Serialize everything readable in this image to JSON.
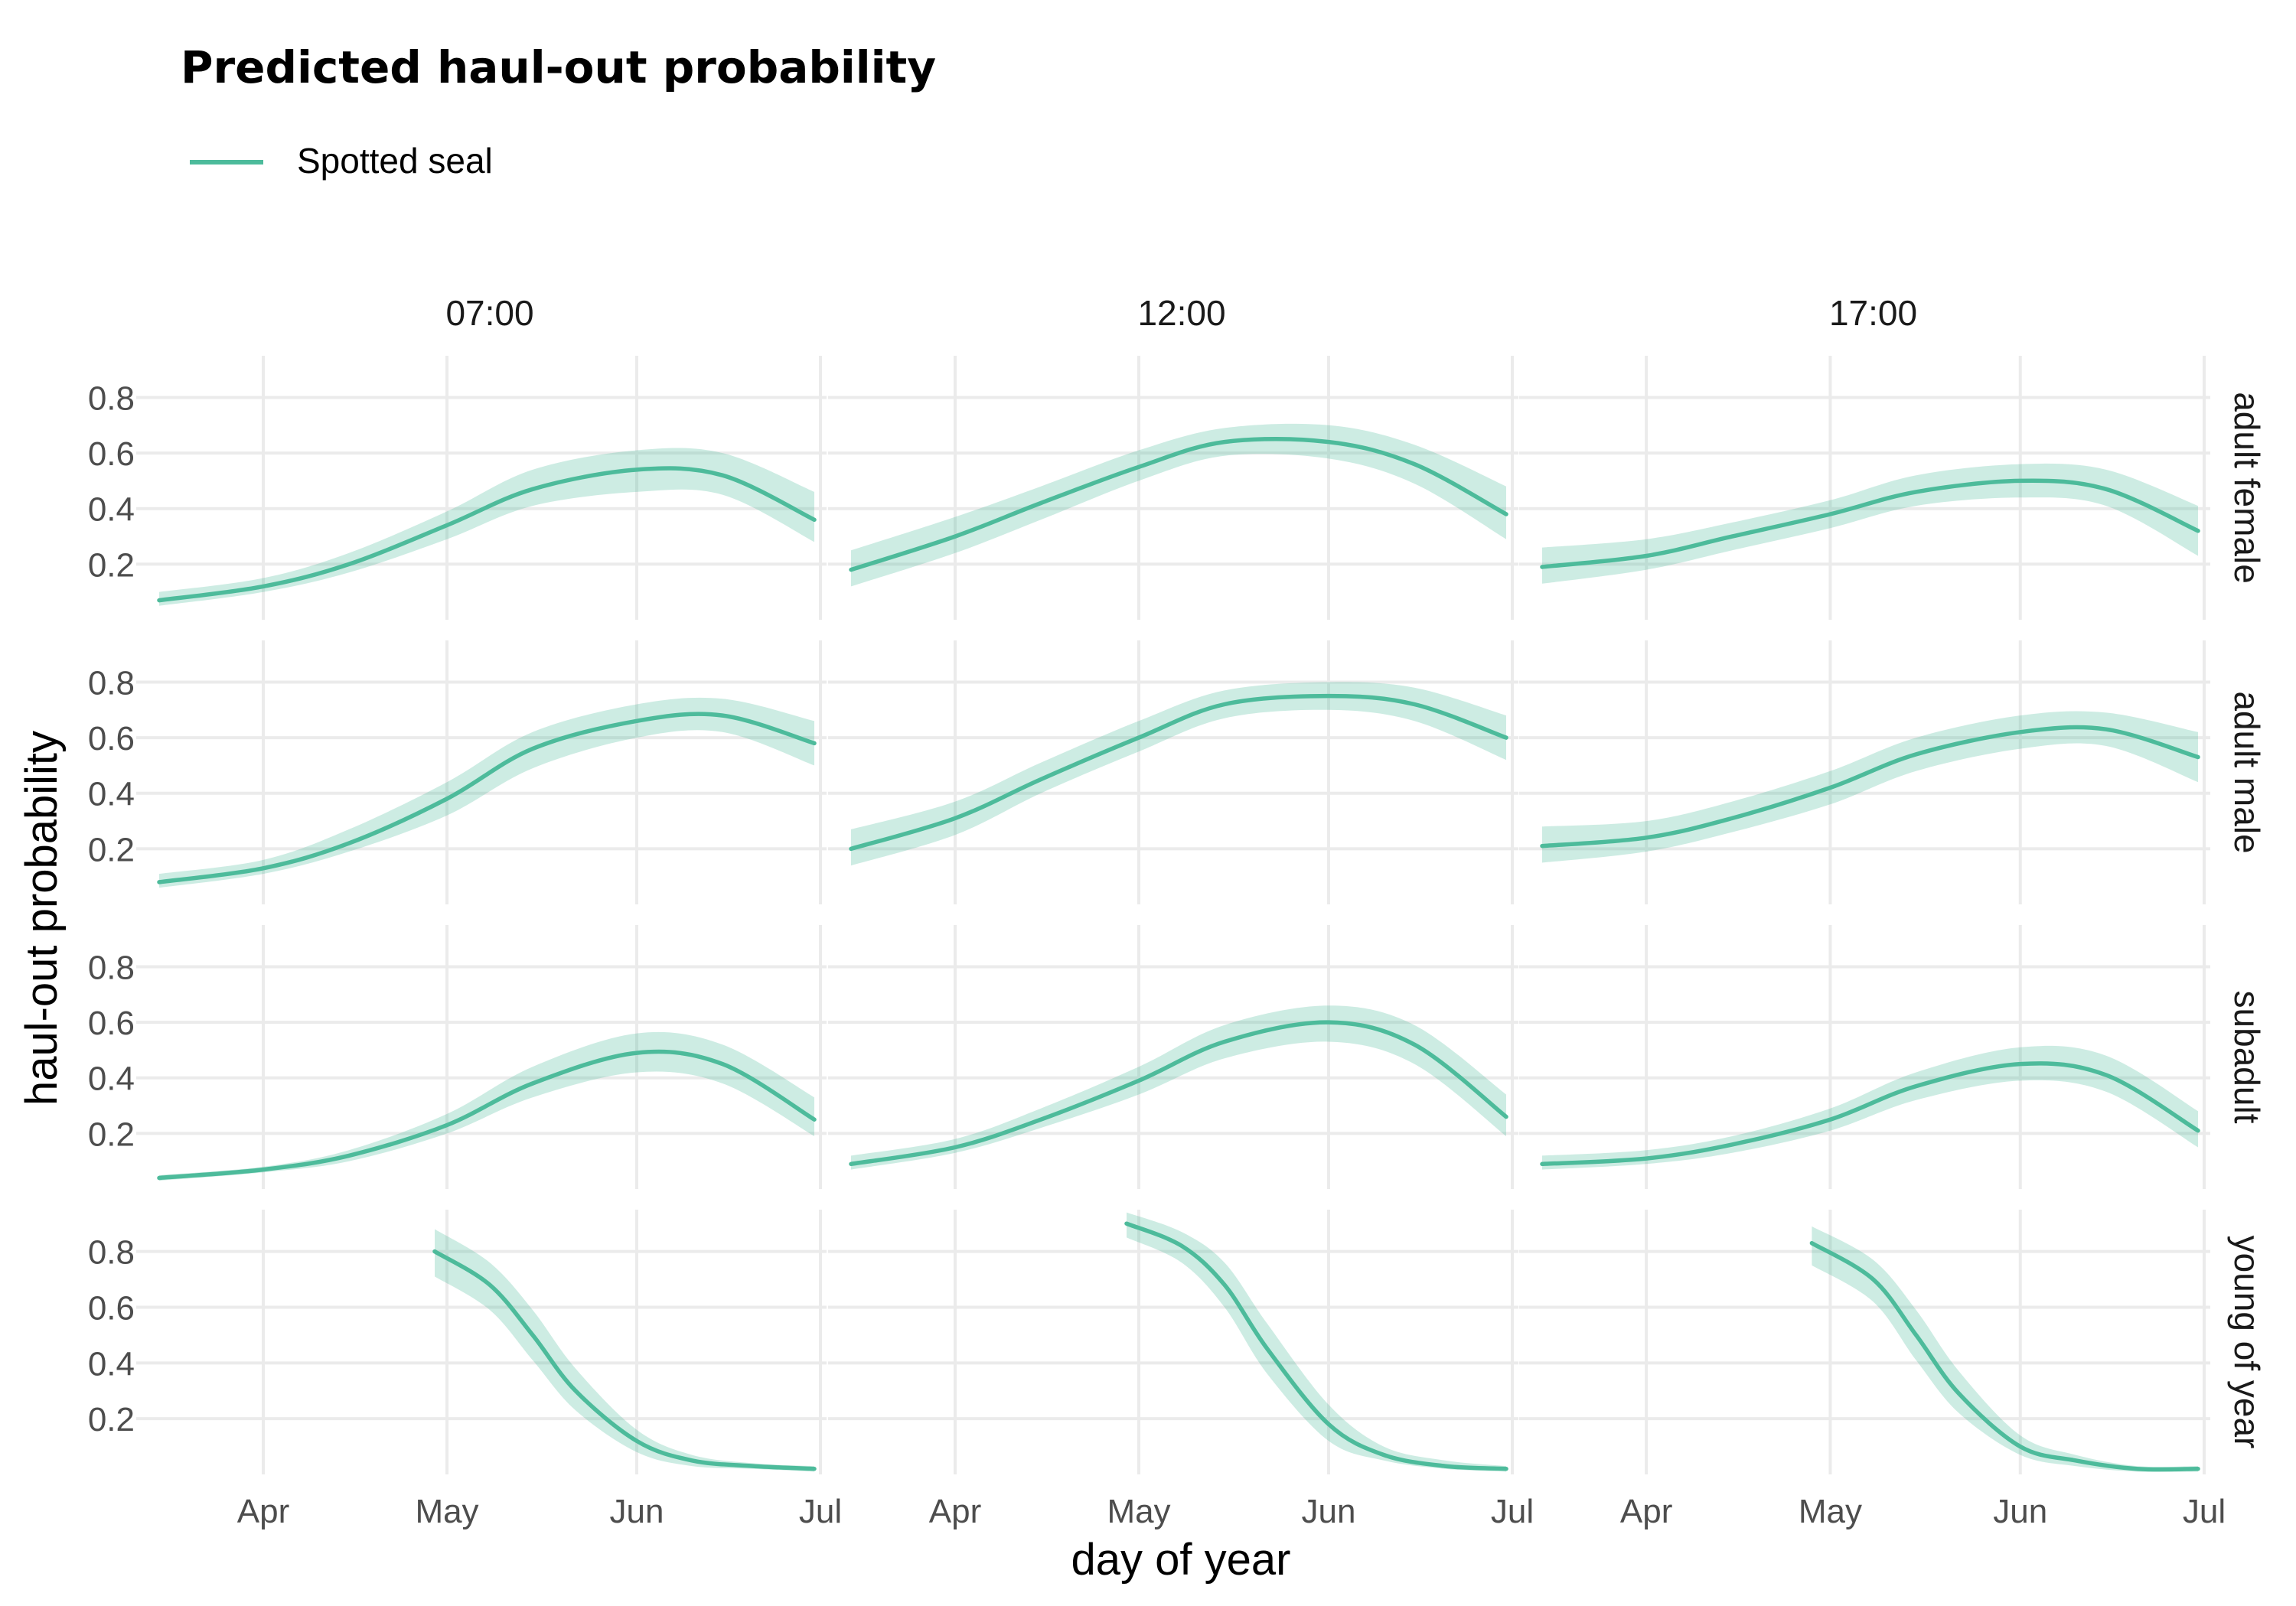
{
  "chart_data": {
    "type": "line",
    "title": "Predicted haul-out probability",
    "xlabel": "day of year",
    "ylabel": "haul-out probability",
    "colors": {
      "line": "#4dbb9b",
      "ribbon": "#4dbb9b",
      "grid": "#ebebeb"
    },
    "legend": {
      "position": "top-left",
      "entries": [
        "Spotted seal"
      ]
    },
    "grid": true,
    "columns": [
      "07:00",
      "12:00",
      "17:00"
    ],
    "rows": [
      "adult female",
      "adult male",
      "subadult",
      "young of year"
    ],
    "x_ticks": [
      {
        "label": "Apr",
        "date": "2024-04-01"
      },
      {
        "label": "May",
        "date": "2024-05-01"
      },
      {
        "label": "Jun",
        "date": "2024-06-01"
      },
      {
        "label": "Jul",
        "date": "2024-07-01"
      }
    ],
    "xlim": [
      "2024-03-15",
      "2024-07-01"
    ],
    "y_ticks": [
      0.2,
      0.4,
      0.6,
      0.8
    ],
    "ylim": [
      0,
      0.95
    ],
    "panels": [
      {
        "row": "adult female",
        "col": "07:00",
        "points": [
          {
            "date": "2024-03-15",
            "y": 0.07,
            "lo": 0.05,
            "hi": 0.1
          },
          {
            "date": "2024-04-01",
            "y": 0.12,
            "lo": 0.1,
            "hi": 0.15
          },
          {
            "date": "2024-04-15",
            "y": 0.2,
            "lo": 0.17,
            "hi": 0.24
          },
          {
            "date": "2024-05-01",
            "y": 0.34,
            "lo": 0.29,
            "hi": 0.39
          },
          {
            "date": "2024-05-15",
            "y": 0.47,
            "lo": 0.41,
            "hi": 0.54
          },
          {
            "date": "2024-06-01",
            "y": 0.54,
            "lo": 0.46,
            "hi": 0.61
          },
          {
            "date": "2024-06-15",
            "y": 0.52,
            "lo": 0.45,
            "hi": 0.6
          },
          {
            "date": "2024-06-30",
            "y": 0.36,
            "lo": 0.28,
            "hi": 0.46
          }
        ]
      },
      {
        "row": "adult female",
        "col": "12:00",
        "points": [
          {
            "date": "2024-03-15",
            "y": 0.18,
            "lo": 0.12,
            "hi": 0.25
          },
          {
            "date": "2024-04-01",
            "y": 0.3,
            "lo": 0.24,
            "hi": 0.37
          },
          {
            "date": "2024-04-15",
            "y": 0.42,
            "lo": 0.36,
            "hi": 0.48
          },
          {
            "date": "2024-05-01",
            "y": 0.55,
            "lo": 0.5,
            "hi": 0.61
          },
          {
            "date": "2024-05-15",
            "y": 0.64,
            "lo": 0.59,
            "hi": 0.69
          },
          {
            "date": "2024-06-01",
            "y": 0.64,
            "lo": 0.58,
            "hi": 0.7
          },
          {
            "date": "2024-06-15",
            "y": 0.56,
            "lo": 0.49,
            "hi": 0.63
          },
          {
            "date": "2024-06-30",
            "y": 0.38,
            "lo": 0.29,
            "hi": 0.48
          }
        ]
      },
      {
        "row": "adult female",
        "col": "17:00",
        "points": [
          {
            "date": "2024-03-15",
            "y": 0.19,
            "lo": 0.13,
            "hi": 0.26
          },
          {
            "date": "2024-04-01",
            "y": 0.23,
            "lo": 0.18,
            "hi": 0.29
          },
          {
            "date": "2024-04-15",
            "y": 0.3,
            "lo": 0.25,
            "hi": 0.35
          },
          {
            "date": "2024-05-01",
            "y": 0.38,
            "lo": 0.33,
            "hi": 0.43
          },
          {
            "date": "2024-05-15",
            "y": 0.46,
            "lo": 0.41,
            "hi": 0.52
          },
          {
            "date": "2024-06-01",
            "y": 0.5,
            "lo": 0.44,
            "hi": 0.56
          },
          {
            "date": "2024-06-15",
            "y": 0.47,
            "lo": 0.41,
            "hi": 0.54
          },
          {
            "date": "2024-06-30",
            "y": 0.32,
            "lo": 0.23,
            "hi": 0.41
          }
        ]
      },
      {
        "row": "adult male",
        "col": "07:00",
        "points": [
          {
            "date": "2024-03-15",
            "y": 0.08,
            "lo": 0.06,
            "hi": 0.11
          },
          {
            "date": "2024-04-01",
            "y": 0.13,
            "lo": 0.11,
            "hi": 0.16
          },
          {
            "date": "2024-04-15",
            "y": 0.22,
            "lo": 0.19,
            "hi": 0.27
          },
          {
            "date": "2024-05-01",
            "y": 0.38,
            "lo": 0.32,
            "hi": 0.44
          },
          {
            "date": "2024-05-15",
            "y": 0.56,
            "lo": 0.49,
            "hi": 0.62
          },
          {
            "date": "2024-06-01",
            "y": 0.66,
            "lo": 0.6,
            "hi": 0.72
          },
          {
            "date": "2024-06-15",
            "y": 0.68,
            "lo": 0.62,
            "hi": 0.74
          },
          {
            "date": "2024-06-30",
            "y": 0.58,
            "lo": 0.5,
            "hi": 0.66
          }
        ]
      },
      {
        "row": "adult male",
        "col": "12:00",
        "points": [
          {
            "date": "2024-03-15",
            "y": 0.2,
            "lo": 0.14,
            "hi": 0.27
          },
          {
            "date": "2024-04-01",
            "y": 0.31,
            "lo": 0.25,
            "hi": 0.37
          },
          {
            "date": "2024-04-15",
            "y": 0.45,
            "lo": 0.4,
            "hi": 0.51
          },
          {
            "date": "2024-05-01",
            "y": 0.6,
            "lo": 0.55,
            "hi": 0.66
          },
          {
            "date": "2024-05-15",
            "y": 0.72,
            "lo": 0.67,
            "hi": 0.77
          },
          {
            "date": "2024-06-01",
            "y": 0.75,
            "lo": 0.7,
            "hi": 0.8
          },
          {
            "date": "2024-06-15",
            "y": 0.72,
            "lo": 0.66,
            "hi": 0.78
          },
          {
            "date": "2024-06-30",
            "y": 0.6,
            "lo": 0.52,
            "hi": 0.68
          }
        ]
      },
      {
        "row": "adult male",
        "col": "17:00",
        "points": [
          {
            "date": "2024-03-15",
            "y": 0.21,
            "lo": 0.15,
            "hi": 0.28
          },
          {
            "date": "2024-04-01",
            "y": 0.24,
            "lo": 0.19,
            "hi": 0.3
          },
          {
            "date": "2024-04-15",
            "y": 0.31,
            "lo": 0.26,
            "hi": 0.37
          },
          {
            "date": "2024-05-01",
            "y": 0.42,
            "lo": 0.36,
            "hi": 0.48
          },
          {
            "date": "2024-05-15",
            "y": 0.54,
            "lo": 0.48,
            "hi": 0.6
          },
          {
            "date": "2024-06-01",
            "y": 0.62,
            "lo": 0.56,
            "hi": 0.68
          },
          {
            "date": "2024-06-15",
            "y": 0.63,
            "lo": 0.57,
            "hi": 0.69
          },
          {
            "date": "2024-06-30",
            "y": 0.53,
            "lo": 0.44,
            "hi": 0.62
          }
        ]
      },
      {
        "row": "subadult",
        "col": "07:00",
        "points": [
          {
            "date": "2024-03-15",
            "y": 0.04,
            "lo": 0.03,
            "hi": 0.05
          },
          {
            "date": "2024-04-01",
            "y": 0.07,
            "lo": 0.06,
            "hi": 0.08
          },
          {
            "date": "2024-04-15",
            "y": 0.12,
            "lo": 0.1,
            "hi": 0.14
          },
          {
            "date": "2024-05-01",
            "y": 0.23,
            "lo": 0.2,
            "hi": 0.27
          },
          {
            "date": "2024-05-15",
            "y": 0.38,
            "lo": 0.33,
            "hi": 0.44
          },
          {
            "date": "2024-06-01",
            "y": 0.49,
            "lo": 0.42,
            "hi": 0.56
          },
          {
            "date": "2024-06-15",
            "y": 0.45,
            "lo": 0.38,
            "hi": 0.52
          },
          {
            "date": "2024-06-30",
            "y": 0.25,
            "lo": 0.19,
            "hi": 0.33
          }
        ]
      },
      {
        "row": "subadult",
        "col": "12:00",
        "points": [
          {
            "date": "2024-03-15",
            "y": 0.09,
            "lo": 0.07,
            "hi": 0.12
          },
          {
            "date": "2024-04-01",
            "y": 0.15,
            "lo": 0.13,
            "hi": 0.18
          },
          {
            "date": "2024-04-15",
            "y": 0.25,
            "lo": 0.22,
            "hi": 0.29
          },
          {
            "date": "2024-05-01",
            "y": 0.39,
            "lo": 0.34,
            "hi": 0.44
          },
          {
            "date": "2024-05-15",
            "y": 0.53,
            "lo": 0.47,
            "hi": 0.59
          },
          {
            "date": "2024-06-01",
            "y": 0.6,
            "lo": 0.53,
            "hi": 0.66
          },
          {
            "date": "2024-06-15",
            "y": 0.52,
            "lo": 0.45,
            "hi": 0.59
          },
          {
            "date": "2024-06-30",
            "y": 0.26,
            "lo": 0.19,
            "hi": 0.34
          }
        ]
      },
      {
        "row": "subadult",
        "col": "17:00",
        "points": [
          {
            "date": "2024-03-15",
            "y": 0.09,
            "lo": 0.07,
            "hi": 0.12
          },
          {
            "date": "2024-04-01",
            "y": 0.11,
            "lo": 0.09,
            "hi": 0.14
          },
          {
            "date": "2024-04-15",
            "y": 0.16,
            "lo": 0.13,
            "hi": 0.19
          },
          {
            "date": "2024-05-01",
            "y": 0.25,
            "lo": 0.21,
            "hi": 0.29
          },
          {
            "date": "2024-05-15",
            "y": 0.37,
            "lo": 0.32,
            "hi": 0.42
          },
          {
            "date": "2024-06-01",
            "y": 0.45,
            "lo": 0.39,
            "hi": 0.51
          },
          {
            "date": "2024-06-15",
            "y": 0.41,
            "lo": 0.35,
            "hi": 0.48
          },
          {
            "date": "2024-06-30",
            "y": 0.21,
            "lo": 0.15,
            "hi": 0.28
          }
        ]
      },
      {
        "row": "young of year",
        "col": "07:00",
        "points": [
          {
            "date": "2024-04-29",
            "y": 0.8,
            "lo": 0.71,
            "hi": 0.88
          },
          {
            "date": "2024-05-08",
            "y": 0.68,
            "lo": 0.59,
            "hi": 0.76
          },
          {
            "date": "2024-05-15",
            "y": 0.5,
            "lo": 0.41,
            "hi": 0.59
          },
          {
            "date": "2024-05-22",
            "y": 0.3,
            "lo": 0.23,
            "hi": 0.38
          },
          {
            "date": "2024-06-01",
            "y": 0.12,
            "lo": 0.08,
            "hi": 0.16
          },
          {
            "date": "2024-06-10",
            "y": 0.05,
            "lo": 0.03,
            "hi": 0.07
          },
          {
            "date": "2024-06-20",
            "y": 0.03,
            "lo": 0.02,
            "hi": 0.04
          },
          {
            "date": "2024-06-30",
            "y": 0.02,
            "lo": 0.01,
            "hi": 0.03
          }
        ]
      },
      {
        "row": "young of year",
        "col": "12:00",
        "points": [
          {
            "date": "2024-04-29",
            "y": 0.9,
            "lo": 0.85,
            "hi": 0.94
          },
          {
            "date": "2024-05-08",
            "y": 0.82,
            "lo": 0.76,
            "hi": 0.87
          },
          {
            "date": "2024-05-15",
            "y": 0.68,
            "lo": 0.6,
            "hi": 0.76
          },
          {
            "date": "2024-05-22",
            "y": 0.45,
            "lo": 0.36,
            "hi": 0.54
          },
          {
            "date": "2024-06-01",
            "y": 0.18,
            "lo": 0.12,
            "hi": 0.25
          },
          {
            "date": "2024-06-10",
            "y": 0.07,
            "lo": 0.05,
            "hi": 0.1
          },
          {
            "date": "2024-06-20",
            "y": 0.03,
            "lo": 0.02,
            "hi": 0.05
          },
          {
            "date": "2024-06-30",
            "y": 0.02,
            "lo": 0.01,
            "hi": 0.03
          }
        ]
      },
      {
        "row": "young of year",
        "col": "17:00",
        "points": [
          {
            "date": "2024-04-28",
            "y": 0.83,
            "lo": 0.75,
            "hi": 0.89
          },
          {
            "date": "2024-05-08",
            "y": 0.7,
            "lo": 0.62,
            "hi": 0.77
          },
          {
            "date": "2024-05-15",
            "y": 0.5,
            "lo": 0.41,
            "hi": 0.59
          },
          {
            "date": "2024-05-22",
            "y": 0.29,
            "lo": 0.22,
            "hi": 0.37
          },
          {
            "date": "2024-06-01",
            "y": 0.1,
            "lo": 0.07,
            "hi": 0.14
          },
          {
            "date": "2024-06-10",
            "y": 0.05,
            "lo": 0.03,
            "hi": 0.07
          },
          {
            "date": "2024-06-20",
            "y": 0.02,
            "lo": 0.01,
            "hi": 0.03
          },
          {
            "date": "2024-06-30",
            "y": 0.02,
            "lo": 0.01,
            "hi": 0.03
          }
        ]
      }
    ]
  }
}
